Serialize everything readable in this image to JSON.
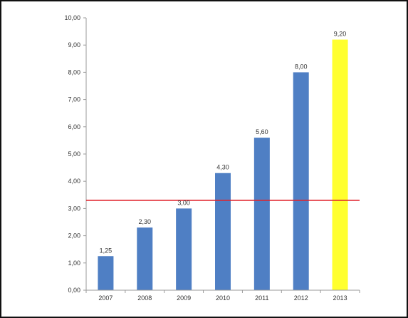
{
  "chart_data": {
    "type": "bar",
    "categories": [
      "2007",
      "2008",
      "2009",
      "2010",
      "2011",
      "2012",
      "2013"
    ],
    "values": [
      1.25,
      2.3,
      3.0,
      4.3,
      5.6,
      8.0,
      9.2
    ],
    "value_labels": [
      "1,25",
      "2,30",
      "3,00",
      "4,30",
      "5,60",
      "8,00",
      "9,20"
    ],
    "title": "",
    "xlabel": "",
    "ylabel": "",
    "ylim": [
      0,
      10
    ],
    "yticks": [
      "0,00",
      "1,00",
      "2,00",
      "3,00",
      "4,00",
      "5,00",
      "6,00",
      "7,00",
      "8,00",
      "9,00",
      "10,00"
    ],
    "reference_line": {
      "value": 3.3,
      "color": "#e0202a"
    },
    "grid": false,
    "legend": "none",
    "colors": {
      "bar": "#4f7fc4",
      "highlight_bar": "#ffff2e",
      "highlight_index": 6,
      "axis": "#9a9a9a"
    }
  }
}
